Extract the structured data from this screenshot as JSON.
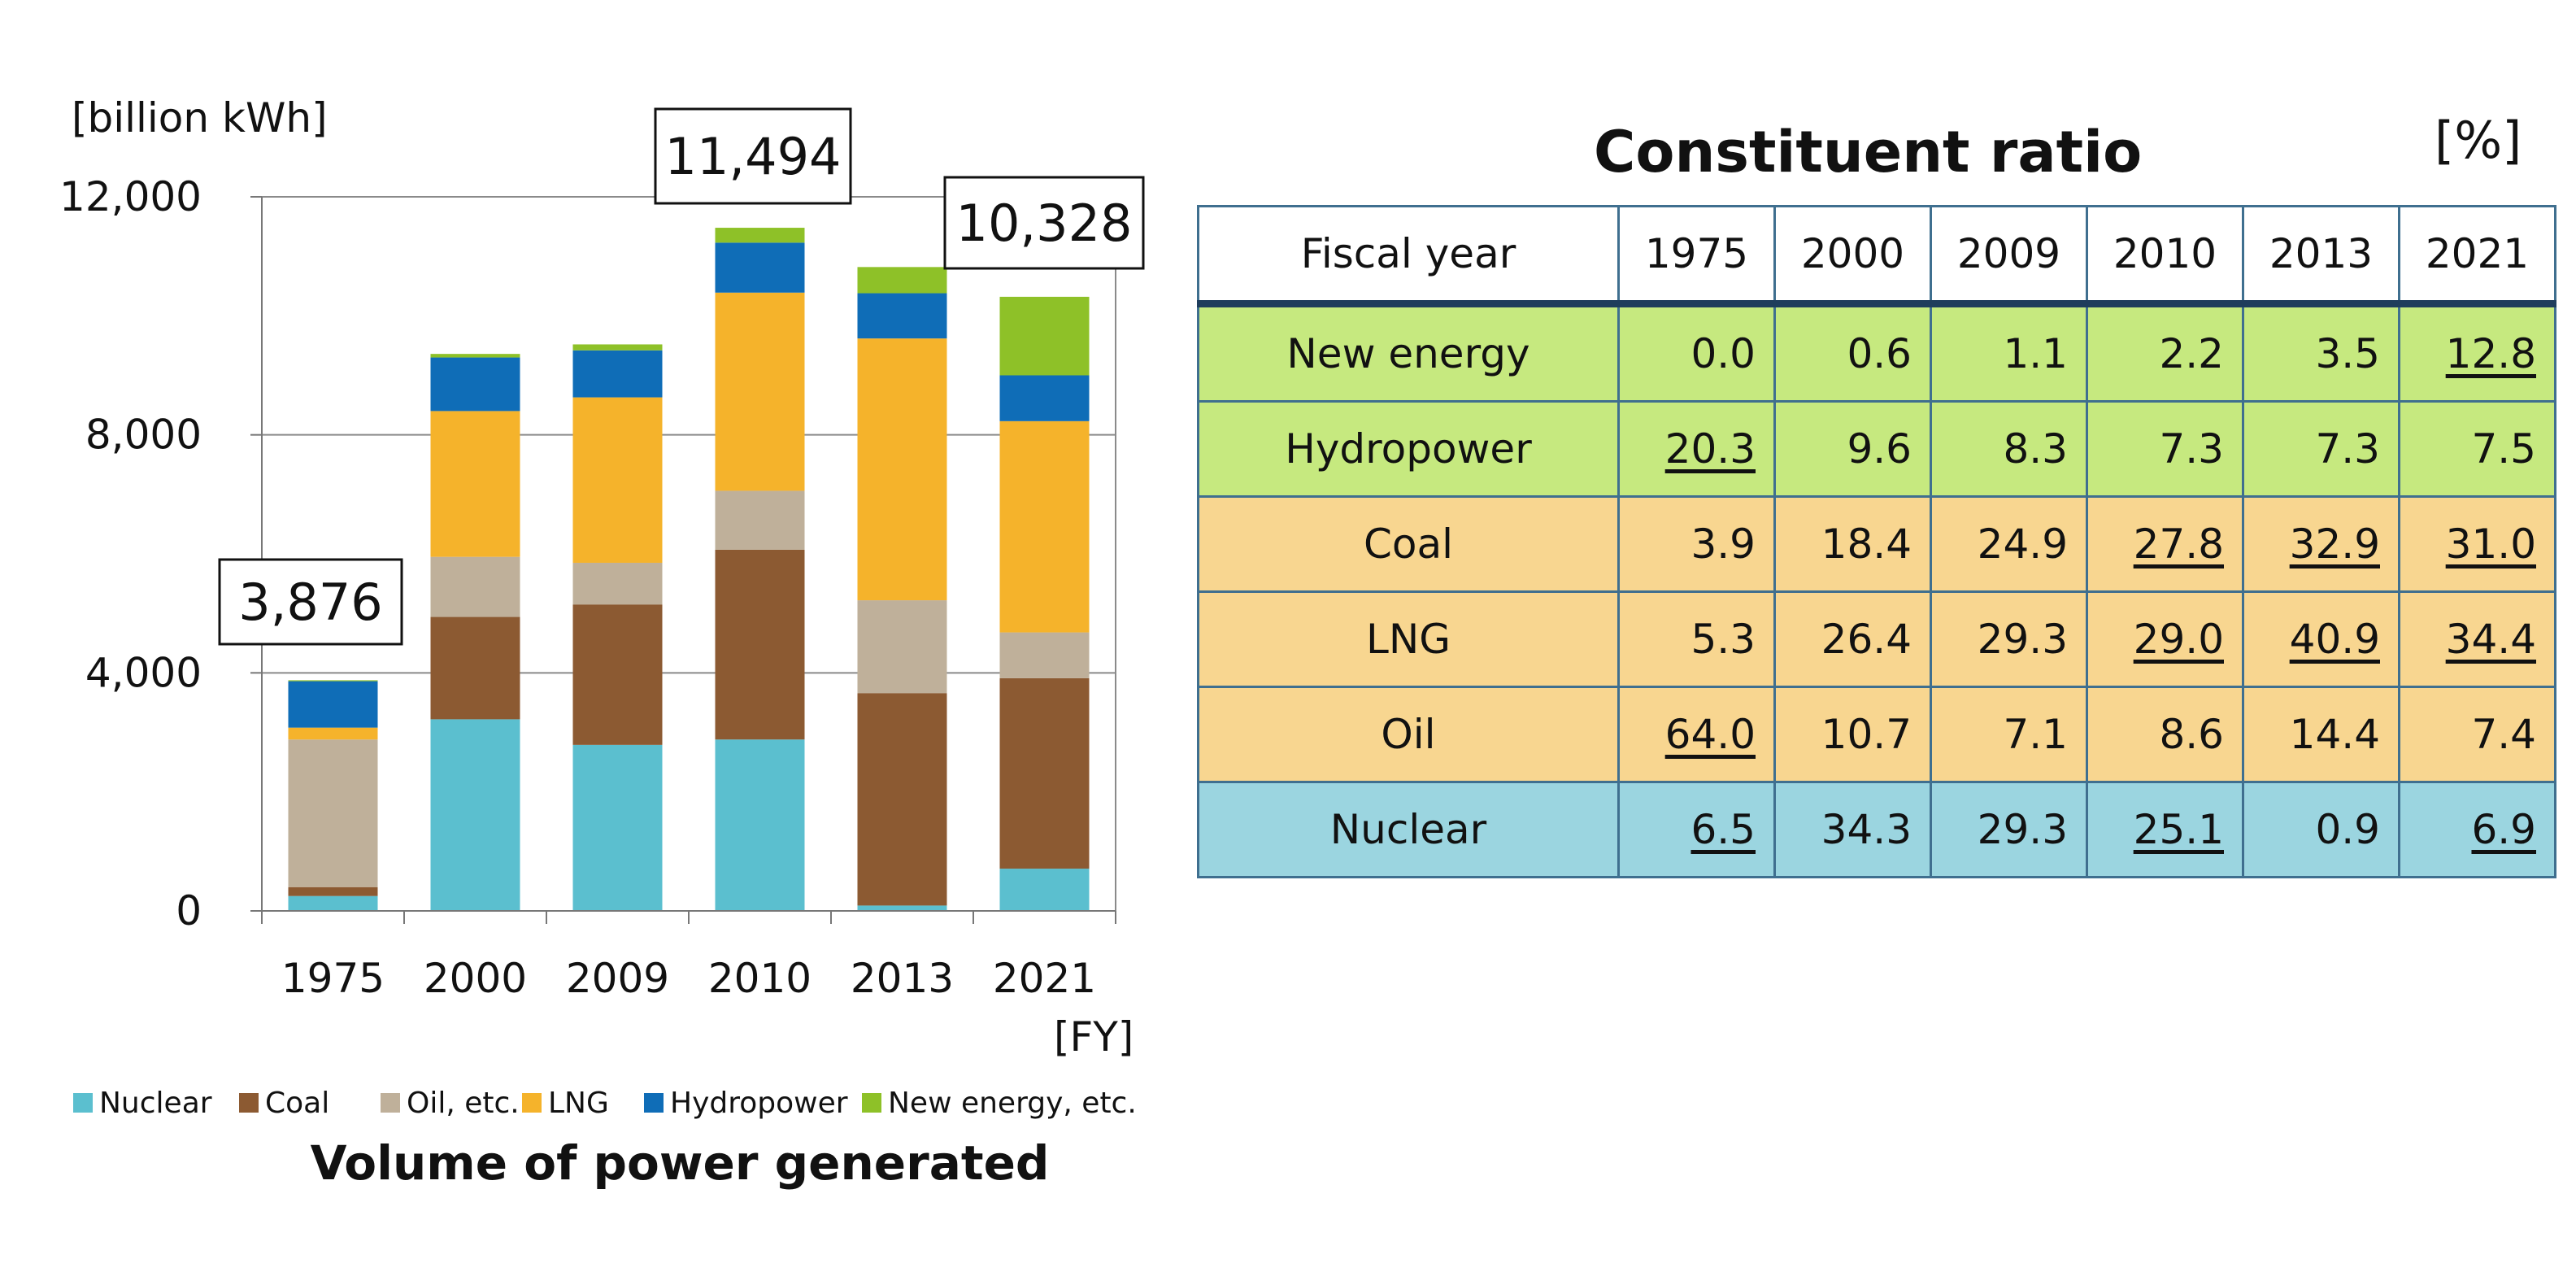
{
  "chart_data": {
    "type": "bar",
    "stacked": true,
    "title": "Volume of power generated",
    "unit_label": "[billion kWh]",
    "x_unit_label": "[FY]",
    "categories": [
      "1975",
      "2000",
      "2009",
      "2010",
      "2013",
      "2021"
    ],
    "ylim": [
      0,
      12000
    ],
    "yticks": [
      {
        "value": 0,
        "label": "0"
      },
      {
        "value": 4000,
        "label": "4,000"
      },
      {
        "value": 8000,
        "label": "8,000"
      },
      {
        "value": 12000,
        "label": "12,000"
      }
    ],
    "grid": true,
    "legend_position": "bottom",
    "series": [
      {
        "name": "Nuclear",
        "color": "#5bbfcf",
        "values": [
          250,
          3220,
          2790,
          2880,
          90,
          710
        ]
      },
      {
        "name": "Coal",
        "color": "#8c5a32",
        "values": [
          150,
          1720,
          2360,
          3190,
          3570,
          3200
        ]
      },
      {
        "name": "Oil, etc.",
        "color": "#bfb09a",
        "values": [
          2480,
          1010,
          700,
          990,
          1560,
          770
        ]
      },
      {
        "name": "LNG",
        "color": "#f5b32b",
        "values": [
          200,
          2450,
          2780,
          3330,
          4400,
          3550
        ]
      },
      {
        "name": "Hydropower",
        "color": "#0f6db7",
        "values": [
          780,
          900,
          790,
          840,
          760,
          770
        ]
      },
      {
        "name": "New energy, etc.",
        "color": "#8ec128",
        "values": [
          16,
          60,
          100,
          250,
          440,
          1320
        ]
      }
    ],
    "annotations": [
      {
        "category": "1975",
        "label": "3,876"
      },
      {
        "category": "2010",
        "label": "11,494"
      },
      {
        "category": "2021",
        "label": "10,328"
      }
    ]
  },
  "table": {
    "title": "Constituent ratio",
    "unit": "[%]",
    "header": [
      "Fiscal year",
      "1975",
      "2000",
      "2009",
      "2010",
      "2013",
      "2021"
    ],
    "rows": [
      {
        "label": "New energy",
        "cells": [
          {
            "text": "0.0",
            "u": false
          },
          {
            "text": "0.6",
            "u": false
          },
          {
            "text": "1.1",
            "u": false
          },
          {
            "text": "2.2",
            "u": false
          },
          {
            "text": "3.5",
            "u": false
          },
          {
            "text": "12.8",
            "u": true
          }
        ]
      },
      {
        "label": "Hydropower",
        "cells": [
          {
            "text": "20.3",
            "u": true
          },
          {
            "text": "9.6",
            "u": false
          },
          {
            "text": "8.3",
            "u": false
          },
          {
            "text": "7.3",
            "u": false
          },
          {
            "text": "7.3",
            "u": false
          },
          {
            "text": "7.5",
            "u": false
          }
        ]
      },
      {
        "label": "Coal",
        "cells": [
          {
            "text": "3.9",
            "u": false
          },
          {
            "text": "18.4",
            "u": false
          },
          {
            "text": "24.9",
            "u": false
          },
          {
            "text": "27.8",
            "u": true
          },
          {
            "text": "32.9",
            "u": true
          },
          {
            "text": "31.0",
            "u": true
          }
        ]
      },
      {
        "label": "LNG",
        "cells": [
          {
            "text": "5.3",
            "u": false
          },
          {
            "text": "26.4",
            "u": false
          },
          {
            "text": "29.3",
            "u": false
          },
          {
            "text": "29.0",
            "u": true
          },
          {
            "text": "40.9",
            "u": true
          },
          {
            "text": "34.4",
            "u": true
          }
        ]
      },
      {
        "label": "Oil",
        "cells": [
          {
            "text": "64.0",
            "u": true
          },
          {
            "text": "10.7",
            "u": false
          },
          {
            "text": "7.1",
            "u": false
          },
          {
            "text": "8.6",
            "u": false
          },
          {
            "text": "14.4",
            "u": false
          },
          {
            "text": "7.4",
            "u": false
          }
        ]
      },
      {
        "label": "Nuclear",
        "cells": [
          {
            "text": "6.5",
            "u": true
          },
          {
            "text": "34.3",
            "u": false
          },
          {
            "text": "29.3",
            "u": false
          },
          {
            "text": "25.1",
            "u": true
          },
          {
            "text": "0.9",
            "u": false
          },
          {
            "text": "6.9",
            "u": true
          }
        ]
      }
    ],
    "row_groups": [
      "green",
      "green",
      "orange",
      "orange",
      "orange",
      "blue"
    ]
  }
}
